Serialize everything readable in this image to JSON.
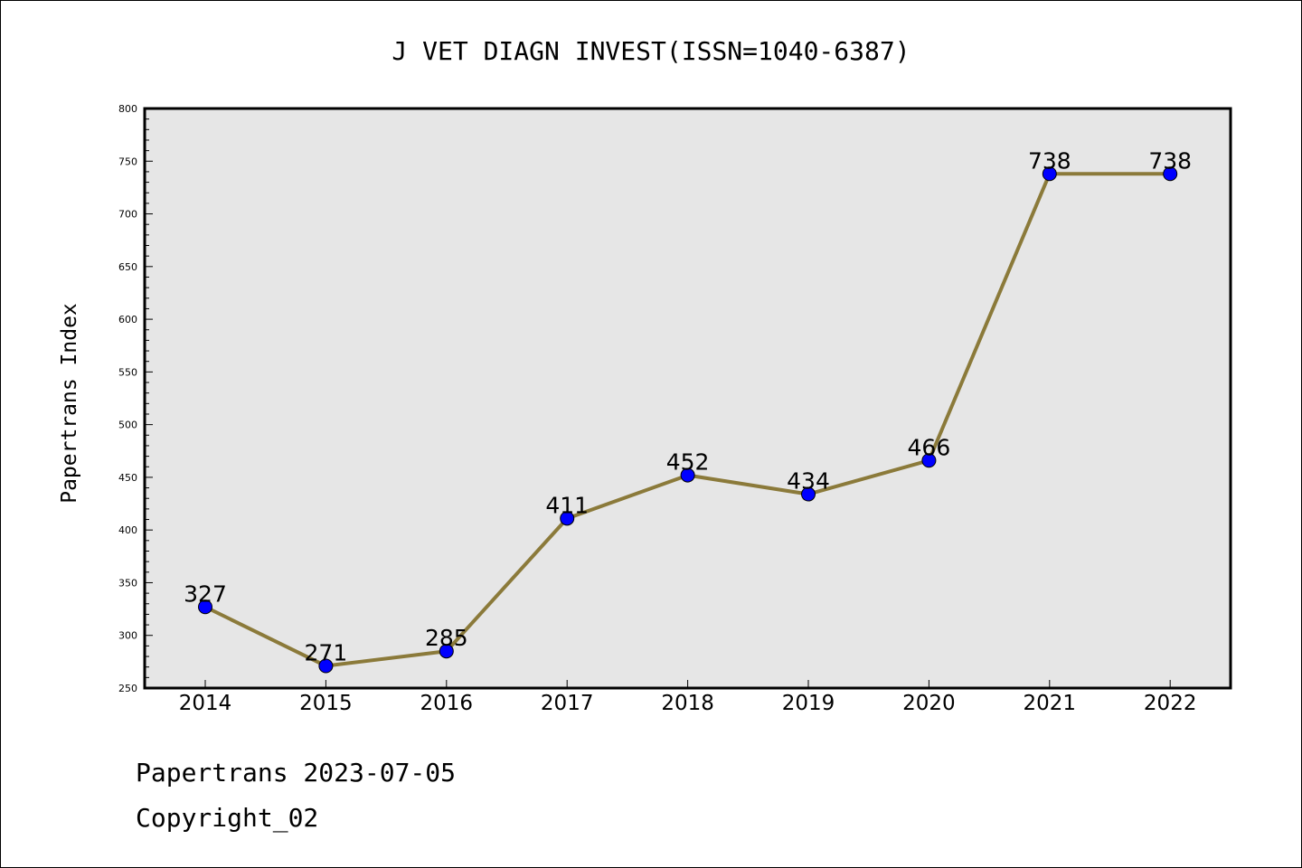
{
  "chart_data": {
    "type": "line",
    "title": "J VET DIAGN INVEST(ISSN=1040-6387)",
    "xlabel": "",
    "ylabel": "Papertrans Index",
    "categories": [
      "2014",
      "2015",
      "2016",
      "2017",
      "2018",
      "2019",
      "2020",
      "2021",
      "2022"
    ],
    "series": [
      {
        "values": [
          327,
          271,
          285,
          411,
          452,
          434,
          466,
          738,
          738
        ],
        "line_color": "#8b7a3a",
        "marker_color": "#0000ff"
      }
    ],
    "data_labels": [
      "327",
      "271",
      "285",
      "411",
      "452",
      "434",
      "466",
      "738",
      "738"
    ],
    "ylim": [
      250,
      800
    ],
    "yticks": [
      250,
      300,
      350,
      400,
      450,
      500,
      550,
      600,
      650,
      700,
      750,
      800
    ],
    "ytick_labels": [
      "250",
      "300",
      "350",
      "400",
      "450",
      "500",
      "550",
      "600",
      "650",
      "700",
      "750",
      "800"
    ],
    "grid": false,
    "plot_background": "#e6e6e6"
  },
  "footer": {
    "line1": "Papertrans 2023-07-05",
    "line2": "Copyright_02"
  }
}
